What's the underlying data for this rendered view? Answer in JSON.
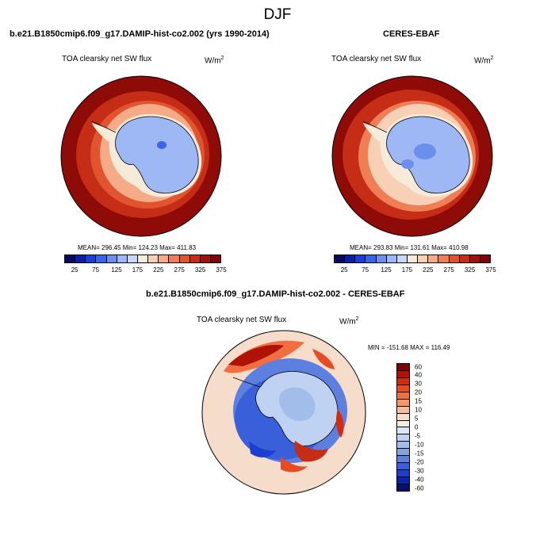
{
  "title": "DJF",
  "panels": {
    "model": {
      "title": "b.e21.B1850cmip6.f09_g17.DAMIP-hist-co2.002 (yrs 1990-2014)",
      "field": "TOA clearsky net SW flux",
      "units_base": "W/m",
      "units_exp": "2",
      "stats": "MEAN= 296.45  Min= 124.23  Max= 411.83"
    },
    "obs": {
      "title": "CERES-EBAF",
      "field": "TOA clearsky net SW flux",
      "units_base": "W/m",
      "units_exp": "2",
      "stats": "MEAN= 293.83  Min= 131.61  Max= 410.98"
    },
    "diff": {
      "title": "b.e21.B1850cmip6.f09_g17.DAMIP-hist-co2.002 - CERES-EBAF",
      "field": "TOA clearsky net SW flux",
      "units_base": "W/m",
      "units_exp": "2",
      "stats": "MIN = -151.68 MAX = 116.49"
    }
  },
  "abs_colorbar": {
    "colors": [
      "#08085e",
      "#0a1fa6",
      "#1a3fd6",
      "#3a64e6",
      "#6c8fee",
      "#9db8f4",
      "#c8d8f8",
      "#f6ead8",
      "#f8d0b6",
      "#f5ab87",
      "#ef7d55",
      "#e2532f",
      "#c62d16",
      "#a0120c",
      "#7a0608"
    ],
    "tick_labels": [
      "25",
      "75",
      "125",
      "175",
      "225",
      "275",
      "325",
      "375"
    ]
  },
  "diff_colorbar": {
    "colors": [
      "#7a0608",
      "#b01208",
      "#d42a0e",
      "#e84a22",
      "#f06e40",
      "#f5976a",
      "#f8bc9a",
      "#f6dccb",
      "#f3ece5",
      "#dbe5f5",
      "#c0d2f1",
      "#a3bdeb",
      "#83a2e4",
      "#5c7fe0",
      "#3a5fdb",
      "#1b3fd0",
      "#0a23a8",
      "#07106e"
    ],
    "tick_labels": [
      "60",
      "40",
      "30",
      "20",
      "15",
      "10",
      "5",
      "0",
      "-5",
      "-10",
      "-15",
      "-20",
      "-30",
      "-40",
      "-60"
    ]
  }
}
